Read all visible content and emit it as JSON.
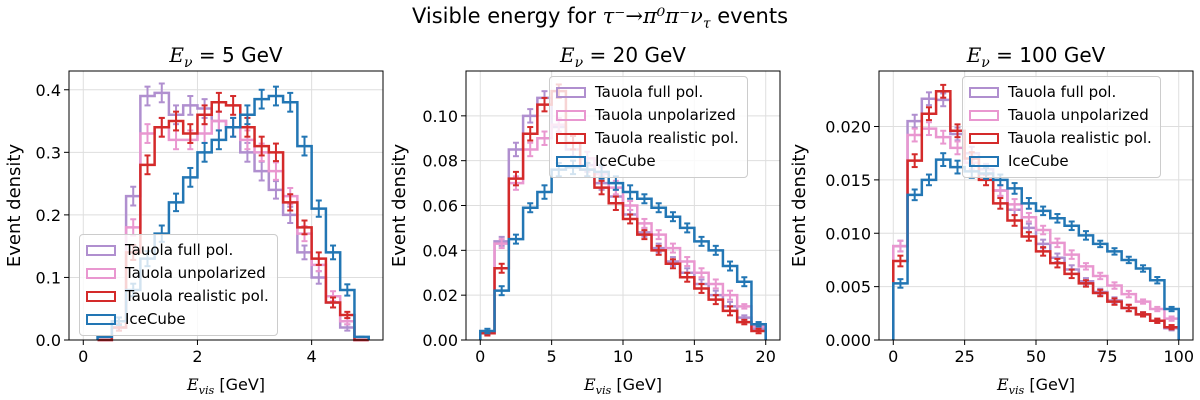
{
  "figure": {
    "title_prefix": "Visible energy for ",
    "title_math": "τ⁻→π⁰π⁻ν",
    "title_math_sub": "τ",
    "title_suffix": " events"
  },
  "chart_data": [
    {
      "type": "step",
      "title": "E_ν = 5 GeV",
      "xlabel": "E_vis [GeV]",
      "ylabel": "Event density",
      "xlim": [
        -0.25,
        5.25
      ],
      "ylim": [
        0,
        0.43
      ],
      "xticks": [
        0,
        2,
        4
      ],
      "yticks": [
        0.0,
        0.1,
        0.2,
        0.3,
        0.4
      ],
      "grid": true,
      "legend_position": "lower-left",
      "bin_edges": [
        0.25,
        0.5,
        0.75,
        1.0,
        1.25,
        1.5,
        1.75,
        2.0,
        2.25,
        2.5,
        2.75,
        3.0,
        3.25,
        3.5,
        3.75,
        4.0,
        4.25,
        4.5,
        4.75,
        5.0
      ],
      "series": [
        {
          "name": "Tauola full pol.",
          "color": "#b08fcf",
          "values": [
            0.0,
            0.02,
            0.23,
            0.39,
            0.395,
            0.36,
            0.375,
            0.37,
            0.35,
            0.34,
            0.3,
            0.27,
            0.24,
            0.2,
            0.14,
            0.1,
            0.06,
            0.02,
            0.0
          ],
          "errors": [
            0.0,
            0.005,
            0.015,
            0.015,
            0.015,
            0.015,
            0.015,
            0.015,
            0.015,
            0.015,
            0.015,
            0.015,
            0.014,
            0.013,
            0.011,
            0.01,
            0.008,
            0.005,
            0.0
          ]
        },
        {
          "name": "Tauola unpolarized",
          "color": "#e997d0",
          "values": [
            0.0,
            0.02,
            0.18,
            0.33,
            0.34,
            0.32,
            0.32,
            0.33,
            0.35,
            0.34,
            0.32,
            0.3,
            0.27,
            0.23,
            0.17,
            0.12,
            0.07,
            0.03,
            0.0
          ],
          "errors": [
            0.0,
            0.005,
            0.013,
            0.015,
            0.015,
            0.015,
            0.015,
            0.015,
            0.015,
            0.015,
            0.015,
            0.014,
            0.014,
            0.013,
            0.012,
            0.01,
            0.008,
            0.005,
            0.0
          ]
        },
        {
          "name": "Tauola realistic pol.",
          "color": "#d42a2a",
          "values": [
            0.0,
            0.02,
            0.14,
            0.28,
            0.34,
            0.35,
            0.33,
            0.36,
            0.38,
            0.375,
            0.34,
            0.31,
            0.3,
            0.22,
            0.18,
            0.13,
            0.06,
            0.04,
            0.0
          ],
          "errors": [
            0.0,
            0.005,
            0.012,
            0.015,
            0.015,
            0.015,
            0.015,
            0.015,
            0.015,
            0.015,
            0.015,
            0.015,
            0.014,
            0.013,
            0.011,
            0.01,
            0.008,
            0.005,
            0.0
          ]
        },
        {
          "name": "IceCube",
          "color": "#2276b4",
          "values": [
            0.005,
            0.03,
            0.08,
            0.13,
            0.17,
            0.22,
            0.26,
            0.3,
            0.32,
            0.34,
            0.36,
            0.385,
            0.39,
            0.38,
            0.31,
            0.21,
            0.14,
            0.08,
            0.005
          ],
          "errors": [
            0.0,
            0.006,
            0.01,
            0.012,
            0.013,
            0.014,
            0.015,
            0.015,
            0.015,
            0.015,
            0.015,
            0.015,
            0.015,
            0.015,
            0.015,
            0.013,
            0.011,
            0.009,
            0.0
          ]
        }
      ]
    },
    {
      "type": "step",
      "title": "E_ν = 20 GeV",
      "xlabel": "E_vis [GeV]",
      "ylabel": "Event density",
      "xlim": [
        -1,
        21
      ],
      "ylim": [
        0,
        0.12
      ],
      "xticks": [
        0,
        5,
        10,
        15,
        20
      ],
      "yticks": [
        0.0,
        0.02,
        0.04,
        0.06,
        0.08,
        0.1
      ],
      "grid": true,
      "legend_position": "upper-right",
      "bin_edges": [
        0,
        1,
        2,
        3,
        4,
        5,
        6,
        7,
        8,
        9,
        10,
        11,
        12,
        13,
        14,
        15,
        16,
        17,
        18,
        19,
        20
      ],
      "series": [
        {
          "name": "Tauola full pol.",
          "color": "#b08fcf",
          "values": [
            0.003,
            0.044,
            0.085,
            0.1,
            0.108,
            0.095,
            0.085,
            0.078,
            0.07,
            0.064,
            0.056,
            0.048,
            0.041,
            0.035,
            0.03,
            0.025,
            0.02,
            0.015,
            0.01,
            0.005
          ],
          "errors": [
            0.001,
            0.002,
            0.003,
            0.003,
            0.003,
            0.003,
            0.003,
            0.003,
            0.003,
            0.003,
            0.002,
            0.002,
            0.002,
            0.002,
            0.002,
            0.002,
            0.002,
            0.002,
            0.001,
            0.001
          ]
        },
        {
          "name": "Tauola unpolarized",
          "color": "#e997d0",
          "values": [
            0.003,
            0.043,
            0.07,
            0.085,
            0.09,
            0.096,
            0.088,
            0.081,
            0.074,
            0.068,
            0.06,
            0.052,
            0.047,
            0.041,
            0.035,
            0.03,
            0.025,
            0.02,
            0.015,
            0.006
          ],
          "errors": [
            0.001,
            0.002,
            0.003,
            0.003,
            0.003,
            0.003,
            0.003,
            0.003,
            0.003,
            0.003,
            0.002,
            0.002,
            0.002,
            0.002,
            0.002,
            0.002,
            0.002,
            0.002,
            0.001,
            0.001
          ]
        },
        {
          "name": "Tauola realistic pol.",
          "color": "#d42a2a",
          "values": [
            0.003,
            0.032,
            0.072,
            0.092,
            0.105,
            0.111,
            0.088,
            0.076,
            0.068,
            0.061,
            0.054,
            0.047,
            0.04,
            0.034,
            0.028,
            0.023,
            0.018,
            0.013,
            0.008,
            0.004
          ],
          "errors": [
            0.001,
            0.002,
            0.003,
            0.003,
            0.003,
            0.003,
            0.003,
            0.003,
            0.003,
            0.003,
            0.002,
            0.002,
            0.002,
            0.002,
            0.002,
            0.002,
            0.002,
            0.002,
            0.001,
            0.001
          ]
        },
        {
          "name": "IceCube",
          "color": "#2276b4",
          "values": [
            0.004,
            0.022,
            0.045,
            0.059,
            0.066,
            0.076,
            0.077,
            0.076,
            0.075,
            0.07,
            0.066,
            0.063,
            0.059,
            0.055,
            0.05,
            0.044,
            0.04,
            0.033,
            0.026,
            0.007
          ],
          "errors": [
            0.001,
            0.002,
            0.002,
            0.002,
            0.003,
            0.003,
            0.003,
            0.003,
            0.003,
            0.003,
            0.003,
            0.002,
            0.002,
            0.002,
            0.002,
            0.002,
            0.002,
            0.002,
            0.002,
            0.001
          ]
        }
      ]
    },
    {
      "type": "step",
      "title": "E_ν = 100 GeV",
      "xlabel": "E_vis [GeV]",
      "ylabel": "Event density",
      "xlim": [
        -5,
        105
      ],
      "ylim": [
        0,
        0.0252
      ],
      "xticks": [
        0,
        25,
        50,
        75,
        100
      ],
      "yticks": [
        0.0,
        0.005,
        0.01,
        0.015,
        0.02
      ],
      "grid": true,
      "legend_position": "upper-right",
      "bin_edges": [
        0,
        5,
        10,
        15,
        20,
        25,
        30,
        35,
        40,
        45,
        50,
        55,
        60,
        65,
        70,
        75,
        80,
        85,
        90,
        95,
        100
      ],
      "series": [
        {
          "name": "Tauola full pol.",
          "color": "#b08fcf",
          "values": [
            0.0088,
            0.0205,
            0.0226,
            0.0225,
            0.0193,
            0.0175,
            0.016,
            0.014,
            0.0122,
            0.0105,
            0.009,
            0.0077,
            0.0066,
            0.0055,
            0.0045,
            0.0037,
            0.003,
            0.0024,
            0.0018,
            0.0011
          ],
          "errors": [
            0.0005,
            0.0006,
            0.0006,
            0.0006,
            0.0006,
            0.0006,
            0.0005,
            0.0005,
            0.0005,
            0.0004,
            0.0004,
            0.0004,
            0.0004,
            0.0003,
            0.0003,
            0.0003,
            0.0003,
            0.0002,
            0.0002,
            0.0002
          ]
        },
        {
          "name": "Tauola unpolarized",
          "color": "#e997d0",
          "values": [
            0.0088,
            0.0192,
            0.0198,
            0.019,
            0.018,
            0.0166,
            0.0155,
            0.014,
            0.0127,
            0.0115,
            0.0103,
            0.0091,
            0.008,
            0.0069,
            0.006,
            0.0051,
            0.0043,
            0.0036,
            0.0029,
            0.002
          ],
          "errors": [
            0.0005,
            0.0006,
            0.0006,
            0.0006,
            0.0006,
            0.0006,
            0.0005,
            0.0005,
            0.0005,
            0.0004,
            0.0004,
            0.0004,
            0.0004,
            0.0003,
            0.0003,
            0.0003,
            0.0003,
            0.0002,
            0.0002,
            0.0002
          ]
        },
        {
          "name": "Tauola realistic pol.",
          "color": "#d42a2a",
          "values": [
            0.0074,
            0.0168,
            0.0212,
            0.0233,
            0.0196,
            0.017,
            0.015,
            0.0128,
            0.0112,
            0.0097,
            0.0083,
            0.0072,
            0.0062,
            0.0053,
            0.0044,
            0.0036,
            0.003,
            0.0024,
            0.0018,
            0.0012
          ],
          "errors": [
            0.0005,
            0.0006,
            0.0006,
            0.0006,
            0.0006,
            0.0006,
            0.0005,
            0.0005,
            0.0005,
            0.0004,
            0.0004,
            0.0004,
            0.0004,
            0.0003,
            0.0003,
            0.0003,
            0.0003,
            0.0002,
            0.0002,
            0.0002
          ]
        },
        {
          "name": "IceCube",
          "color": "#2276b4",
          "values": [
            0.0053,
            0.0136,
            0.015,
            0.0169,
            0.0162,
            0.0158,
            0.0156,
            0.015,
            0.0142,
            0.0128,
            0.0121,
            0.0114,
            0.0107,
            0.0098,
            0.009,
            0.0083,
            0.0075,
            0.0067,
            0.0056,
            0.0029
          ],
          "errors": [
            0.0004,
            0.0005,
            0.0005,
            0.0006,
            0.0006,
            0.0006,
            0.0005,
            0.0005,
            0.0005,
            0.0005,
            0.0004,
            0.0004,
            0.0004,
            0.0004,
            0.0003,
            0.0003,
            0.0003,
            0.0003,
            0.0003,
            0.0002
          ]
        }
      ]
    }
  ]
}
